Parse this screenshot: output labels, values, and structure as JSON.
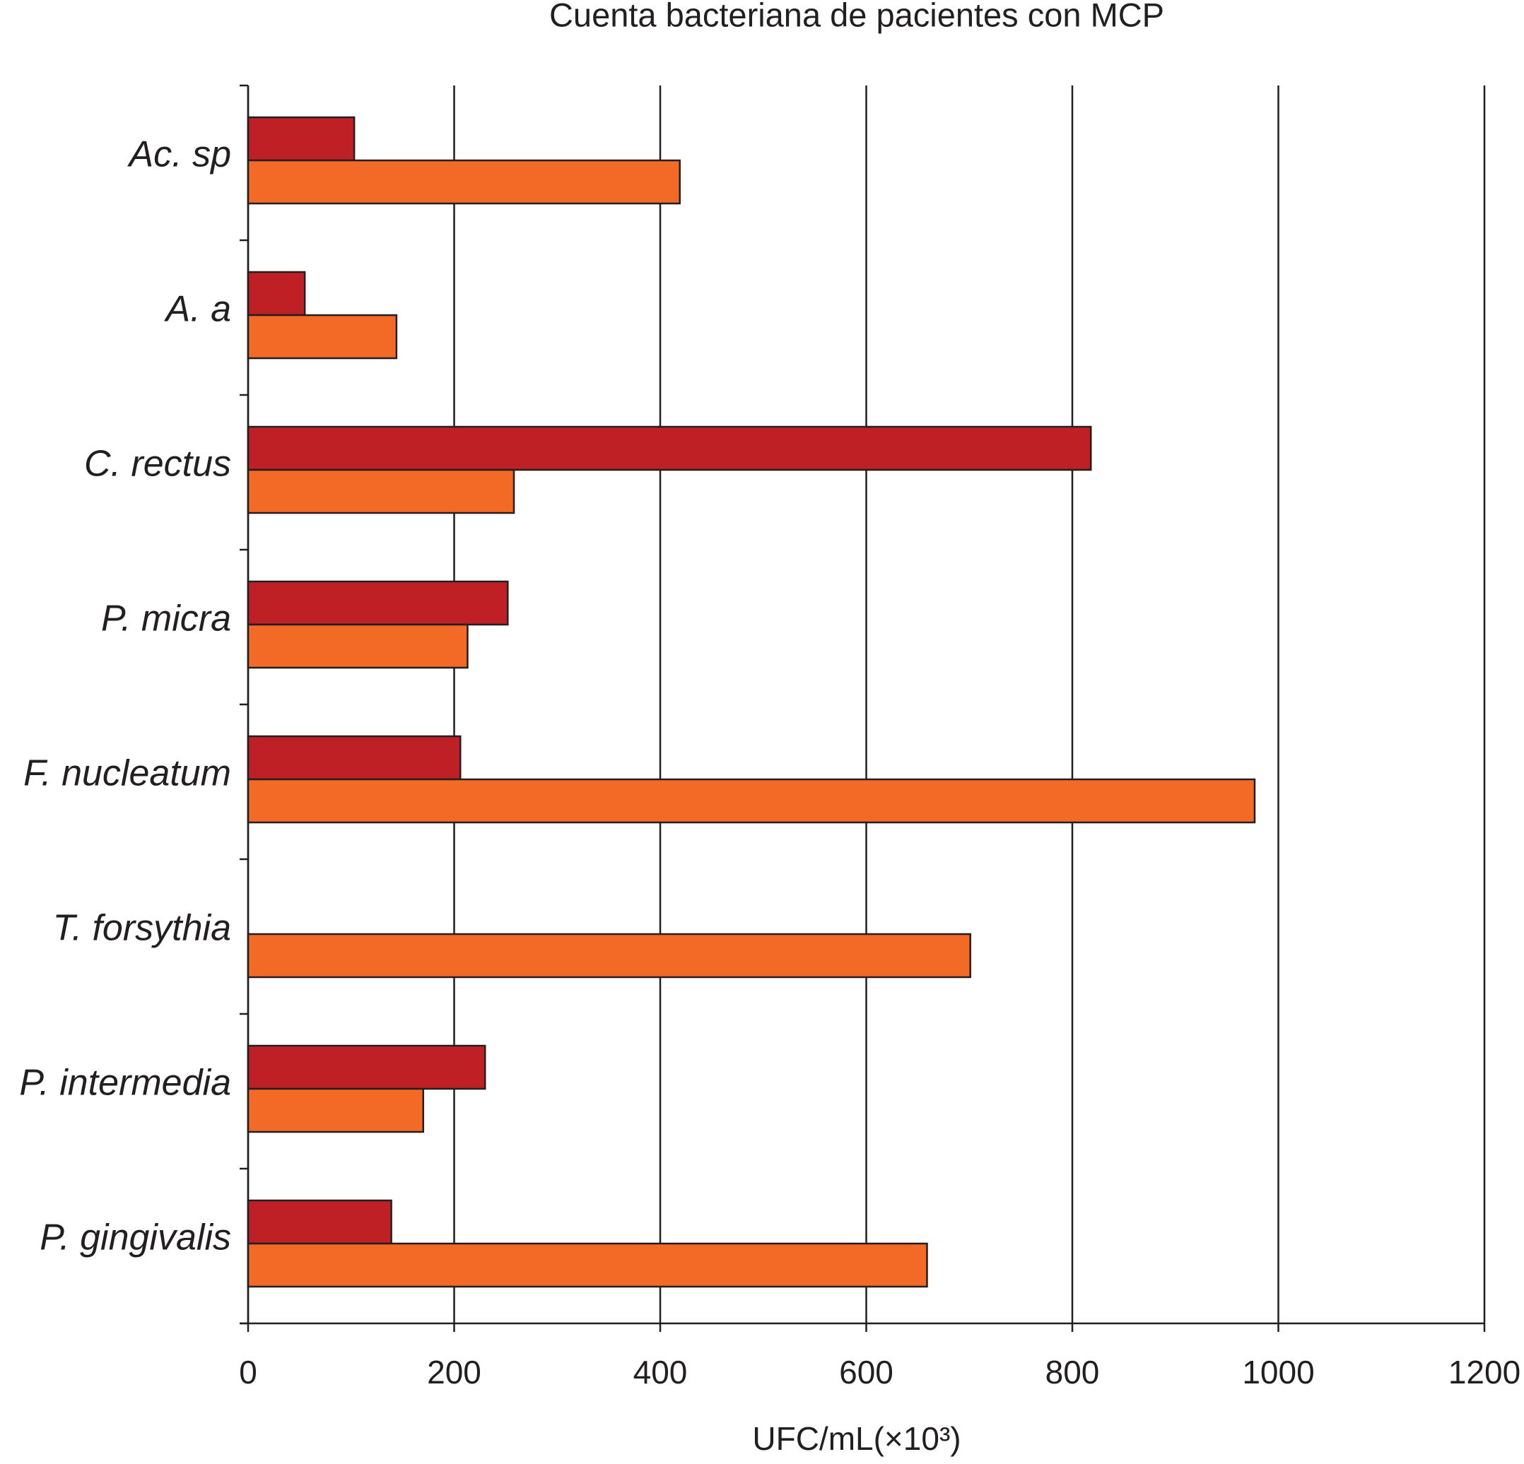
{
  "chart_data": {
    "type": "hbar",
    "title": "Cuenta bacteriana de pacientes con MCP",
    "x_label": "UFC/mL(×10³)",
    "categories": [
      "Ac. sp",
      "A. a",
      "C. rectus",
      "P. micra",
      "F. nucleatum",
      "T. forsythia",
      "P. intermedia",
      "P. gingivalis"
    ],
    "series": [
      {
        "color": "#be2026",
        "values": [
          103,
          55,
          818,
          252,
          206,
          null,
          230,
          139
        ]
      },
      {
        "color": "#f26a25",
        "values": [
          419,
          144,
          258,
          213,
          977,
          701,
          170,
          659
        ]
      }
    ],
    "xlim": [
      0,
      1200
    ],
    "xticks": [
      0,
      200,
      400,
      600,
      800,
      1000,
      1200
    ],
    "grid": true
  }
}
